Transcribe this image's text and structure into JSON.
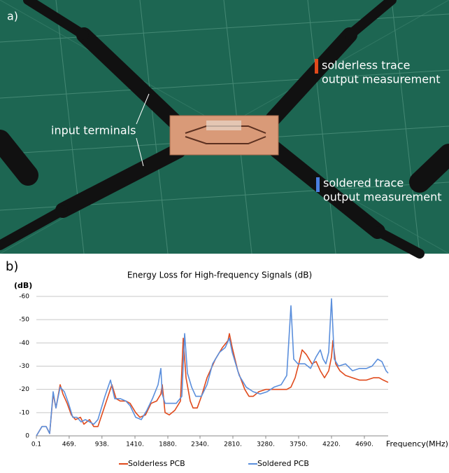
{
  "photo": {
    "label": "a)",
    "annotations": [
      {
        "lines": [
          "input terminals"
        ]
      },
      {
        "lines": [
          "solderless trace",
          "output measurement"
        ]
      },
      {
        "lines": [
          "soldered trace",
          "output measurement"
        ]
      }
    ]
  },
  "chart_label": "b)",
  "chart_data": {
    "type": "line",
    "title": "Energy Loss for High-frequency Signals (dB)",
    "y_label": "(dB)",
    "x_label": "Frequency(MHz)",
    "xlim": [
      0.1,
      5030
    ],
    "ylim": [
      0,
      -60
    ],
    "xticks": [
      0.1,
      {
        "value": 469,
        "label": "469."
      },
      {
        "value": 938,
        "label": "938."
      },
      {
        "value": 1410,
        "label": "1410."
      },
      {
        "value": 1880,
        "label": "1880."
      },
      {
        "value": 2340,
        "label": "2340."
      },
      {
        "value": 2810,
        "label": "2810."
      },
      {
        "value": 3280,
        "label": "3280."
      },
      {
        "value": 3750,
        "label": "3750."
      },
      {
        "value": 4220,
        "label": "4220."
      },
      {
        "value": 4690,
        "label": "4690."
      }
    ],
    "yticks": [
      0,
      -10,
      -20,
      -30,
      -40,
      -50,
      -60
    ],
    "grid": true,
    "series": [
      {
        "name": "Solderless PCB",
        "color": "#e04a1c",
        "x": [
          0.1,
          80,
          140,
          190,
          240,
          280,
          340,
          380,
          440,
          500,
          560,
          630,
          680,
          760,
          820,
          880,
          980,
          1080,
          1140,
          1200,
          1280,
          1340,
          1420,
          1480,
          1560,
          1640,
          1720,
          1780,
          1800,
          1840,
          1900,
          1980,
          2060,
          2100,
          2140,
          2200,
          2240,
          2300,
          2360,
          2440,
          2560,
          2660,
          2740,
          2760,
          2800,
          2880,
          2980,
          3040,
          3100,
          3180,
          3280,
          3380,
          3480,
          3580,
          3640,
          3700,
          3760,
          3800,
          3860,
          3940,
          4000,
          4060,
          4120,
          4180,
          4220,
          4240,
          4280,
          4340,
          4420,
          4520,
          4620,
          4720,
          4820,
          4900,
          4960,
          5030
        ],
        "values": [
          0,
          -4,
          -4,
          -1,
          -18,
          -12,
          -22,
          -18,
          -14,
          -9,
          -7,
          -8,
          -5,
          -7,
          -4,
          -4,
          -13,
          -22,
          -16,
          -15,
          -15,
          -14,
          -10,
          -8,
          -9,
          -14,
          -15,
          -18,
          -22,
          -10,
          -9,
          -11,
          -15,
          -42,
          -25,
          -15,
          -12,
          -12,
          -17,
          -25,
          -33,
          -38,
          -41,
          -44,
          -38,
          -28,
          -20,
          -17,
          -17,
          -19,
          -20,
          -20,
          -20,
          -20,
          -21,
          -25,
          -32,
          -37,
          -35,
          -31,
          -32,
          -28,
          -25,
          -28,
          -34,
          -41,
          -31,
          -28,
          -26,
          -25,
          -24,
          -24,
          -25,
          -25,
          -24,
          -23
        ]
      },
      {
        "name": "Soldered PCB",
        "color": "#5b8fdc",
        "x": [
          0.1,
          80,
          140,
          190,
          240,
          280,
          340,
          400,
          460,
          520,
          580,
          640,
          700,
          760,
          820,
          880,
          980,
          1060,
          1120,
          1200,
          1280,
          1340,
          1420,
          1500,
          1580,
          1660,
          1740,
          1780,
          1800,
          1840,
          1900,
          2000,
          2080,
          2120,
          2160,
          2220,
          2280,
          2360,
          2440,
          2520,
          2620,
          2700,
          2760,
          2800,
          2900,
          3000,
          3100,
          3200,
          3300,
          3400,
          3500,
          3580,
          3640,
          3680,
          3740,
          3840,
          3920,
          4000,
          4060,
          4100,
          4140,
          4180,
          4220,
          4260,
          4320,
          4420,
          4520,
          4620,
          4720,
          4800,
          4880,
          4940,
          5000,
          5030
        ],
        "values": [
          0,
          -4,
          -4,
          -1,
          -19,
          -12,
          -21,
          -19,
          -14,
          -8,
          -8,
          -6,
          -7,
          -6,
          -5,
          -7,
          -17,
          -24,
          -16,
          -16,
          -15,
          -13,
          -8,
          -7,
          -11,
          -16,
          -22,
          -29,
          -18,
          -14,
          -14,
          -14,
          -17,
          -44,
          -27,
          -21,
          -17,
          -17,
          -22,
          -31,
          -36,
          -38,
          -42,
          -36,
          -26,
          -21,
          -19,
          -18,
          -19,
          -21,
          -22,
          -26,
          -56,
          -33,
          -31,
          -31,
          -29,
          -34,
          -37,
          -33,
          -31,
          -36,
          -59,
          -33,
          -30,
          -31,
          -28,
          -29,
          -29,
          -30,
          -33,
          -32,
          -28,
          -27
        ]
      }
    ]
  }
}
